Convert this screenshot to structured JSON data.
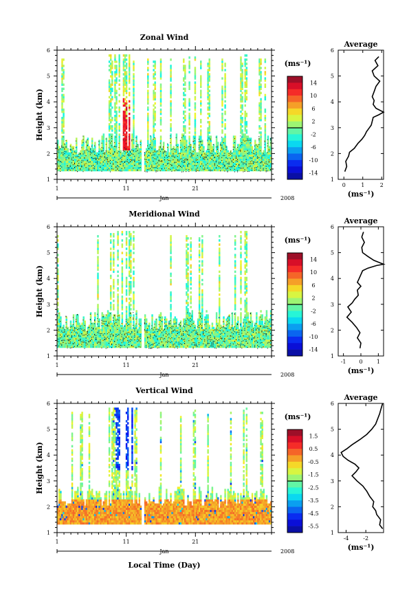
{
  "x_axis": {
    "xlabel": "Local Time (Day)",
    "tick_labels": [
      "1",
      "11",
      "21"
    ],
    "tick_days": [
      1,
      11,
      21
    ],
    "month_label": "Jan",
    "year_label": "2008",
    "xlim": [
      1,
      32
    ]
  },
  "y_axis": {
    "ylabel": "Height (km)",
    "ylim": [
      1,
      6
    ],
    "tick_labels": [
      "1",
      "2",
      "3",
      "4",
      "5",
      "6"
    ]
  },
  "chart_data": [
    {
      "type": "heatmap",
      "title": "Zonal Wind",
      "colorbar": {
        "unit_label": "(ms⁻¹)",
        "tick_labels": [
          "14",
          "10",
          "6",
          "2",
          "-2",
          "-6",
          "-10",
          "-14"
        ],
        "range": [
          -16,
          16
        ]
      }
    },
    {
      "type": "line",
      "title": "Average",
      "xlabel": "(ms⁻¹)",
      "xlim": [
        -0.3,
        2.1
      ],
      "x_tick_labels": [
        "0",
        "1",
        "2"
      ],
      "x_ticks": [
        0,
        1,
        2
      ],
      "ylim": [
        1,
        6
      ],
      "y_tick_labels": [
        "1",
        "2",
        "3",
        "4",
        "5",
        "6"
      ],
      "series": [
        {
          "x": [
            0.05,
            0.15,
            0.1,
            0.25,
            0.3,
            0.55,
            0.75,
            0.95,
            1.1,
            1.2,
            1.35,
            1.45,
            1.5,
            1.55,
            1.85,
            2.1,
            1.7,
            1.55,
            1.6,
            1.5,
            1.6,
            1.7,
            1.9,
            1.6,
            1.5,
            1.8,
            1.65,
            1.85
          ],
          "y": [
            1.3,
            1.5,
            1.7,
            1.9,
            2.05,
            2.2,
            2.4,
            2.55,
            2.7,
            2.85,
            3.0,
            3.1,
            3.25,
            3.4,
            3.5,
            3.6,
            3.75,
            3.9,
            4.05,
            4.2,
            4.4,
            4.6,
            4.8,
            5.0,
            5.2,
            5.4,
            5.6,
            5.75
          ]
        }
      ]
    },
    {
      "type": "heatmap",
      "title": "Meridional Wind",
      "colorbar": {
        "unit_label": "(ms⁻¹)",
        "tick_labels": [
          "14",
          "10",
          "6",
          "2",
          "-2",
          "-6",
          "-10",
          "-14"
        ],
        "range": [
          -16,
          16
        ]
      }
    },
    {
      "type": "line",
      "title": "Average",
      "xlabel": "(ms⁻¹)",
      "xlim": [
        -1.3,
        1.3
      ],
      "x_tick_labels": [
        "-1",
        "0",
        "1"
      ],
      "x_ticks": [
        -1,
        0,
        1
      ],
      "ylim": [
        1,
        6
      ],
      "y_tick_labels": [
        "1",
        "2",
        "3",
        "4",
        "5",
        "6"
      ],
      "series": [
        {
          "x": [
            -0.05,
            0.0,
            -0.2,
            -0.05,
            -0.25,
            -0.5,
            -0.8,
            -0.55,
            -0.75,
            -0.5,
            -0.35,
            -0.15,
            -0.2,
            0.0,
            -0.2,
            -0.1,
            0.0,
            0.1,
            0.4,
            0.9,
            1.3,
            0.75,
            0.4,
            0.1,
            0.05,
            0.2,
            0.05,
            0.15
          ],
          "y": [
            1.3,
            1.5,
            1.7,
            1.9,
            2.1,
            2.3,
            2.5,
            2.7,
            2.9,
            3.05,
            3.2,
            3.35,
            3.55,
            3.7,
            3.85,
            4.0,
            4.15,
            4.3,
            4.4,
            4.5,
            4.55,
            4.7,
            4.85,
            5.0,
            5.2,
            5.4,
            5.6,
            5.8
          ]
        }
      ]
    },
    {
      "type": "heatmap",
      "title": "Vertical Wind",
      "colorbar": {
        "unit_label": "(ms⁻¹)",
        "tick_labels": [
          "1.5",
          "0.5",
          "-0.5",
          "-1.5",
          "-2.5",
          "-3.5",
          "-4.5",
          "-5.5"
        ],
        "range": [
          -6,
          2
        ]
      }
    },
    {
      "type": "line",
      "title": "Average",
      "xlabel": "(ms⁻¹)",
      "xlim": [
        -4.8,
        -0.2
      ],
      "x_tick_labels": [
        "-4",
        "-2"
      ],
      "x_ticks": [
        -4,
        -2
      ],
      "ylim": [
        1,
        6
      ],
      "y_tick_labels": [
        "1",
        "2",
        "3",
        "4",
        "5",
        "6"
      ],
      "series": [
        {
          "x": [
            -0.3,
            -0.6,
            -0.5,
            -0.9,
            -1.0,
            -1.3,
            -1.2,
            -1.6,
            -1.9,
            -2.3,
            -2.9,
            -3.4,
            -3.0,
            -2.7,
            -3.1,
            -3.8,
            -4.3,
            -4.5,
            -3.9,
            -3.4,
            -2.6,
            -1.9,
            -1.4,
            -1.0,
            -0.8,
            -0.6,
            -0.45,
            -0.3
          ],
          "y": [
            1.15,
            1.3,
            1.5,
            1.7,
            1.85,
            2.0,
            2.2,
            2.4,
            2.6,
            2.8,
            3.0,
            3.2,
            3.35,
            3.5,
            3.65,
            3.8,
            3.95,
            4.1,
            4.25,
            4.4,
            4.6,
            4.8,
            5.0,
            5.2,
            5.4,
            5.6,
            5.8,
            6.0
          ]
        }
      ]
    }
  ]
}
